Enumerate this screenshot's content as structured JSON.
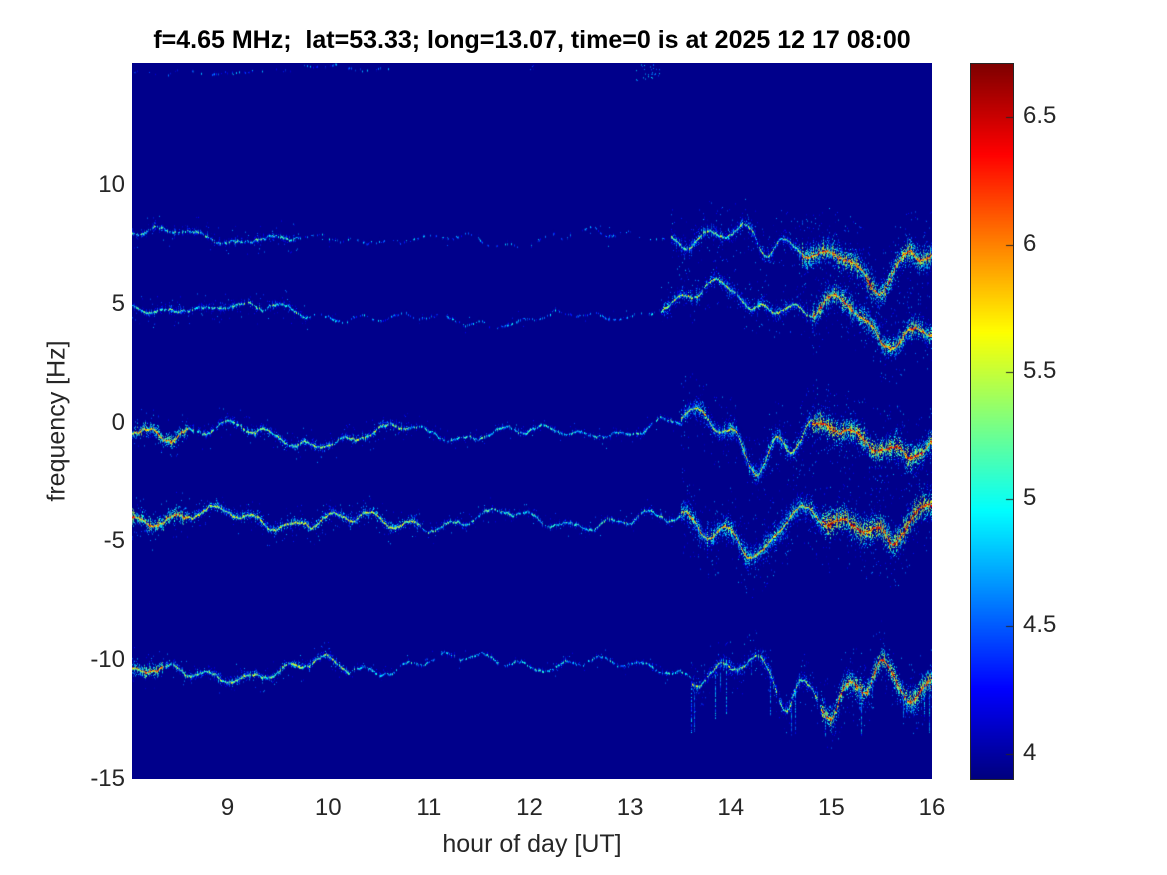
{
  "seed": 1337,
  "colors": {
    "page_background": "#ffffff",
    "plot_background": "#00008b",
    "tick_text": "#262626",
    "title_text": "#000000",
    "colorbar_border": "#262626"
  },
  "chart_data": {
    "type": "heatmap",
    "title": "f=4.65 MHz;  lat=53.33; long=13.07, time=0 is at 2025 12 17 08:00",
    "xlabel": "hour of day [UT]",
    "ylabel": "frequency [Hz]",
    "xlim": [
      8.05,
      16
    ],
    "ylim": [
      -15,
      15.13
    ],
    "clim": [
      3.9,
      6.71
    ],
    "colormap": "jet",
    "grid": false,
    "legend": "none",
    "x_ticks": [
      9,
      10,
      11,
      12,
      13,
      14,
      15,
      16
    ],
    "y_ticks": [
      10,
      5,
      0,
      -5,
      -10,
      -15
    ],
    "colorbar_ticks": [
      "6.5",
      "6",
      "5.5",
      "5",
      "4.5",
      "4"
    ],
    "colorbar_tick_values": [
      6.5,
      6,
      5.5,
      5,
      4.5,
      4
    ],
    "description": "Doppler frequency spectrogram: five horizontal multipath Doppler traces on a dark-blue (low power) background; traces are faint cyan/green dashes mid-day and intensify to broad red cores after ~14 UT with downward V-shaped excursions near 14.2-15.8 UT.",
    "traces": [
      {
        "name": "trace-plus-8Hz",
        "center_hz": 7.9,
        "phases": [
          0.5,
          2.1,
          4.0
        ],
        "dips": [
          {
            "h": 15.45,
            "depth": 1.9,
            "width": 0.22
          },
          {
            "h": 14.35,
            "depth": 0.7,
            "width": 0.1
          }
        ],
        "regions": [
          {
            "h0": 8.05,
            "h1": 9.7,
            "density": 0.8,
            "intensity": 5.0,
            "spread": 0.3,
            "amp": 0.3
          },
          {
            "h0": 9.7,
            "h1": 13.4,
            "density": 0.35,
            "intensity": 4.55,
            "spread": 0.18,
            "amp": 0.28
          },
          {
            "h0": 13.4,
            "h1": 14.7,
            "density": 0.95,
            "intensity": 5.3,
            "spread": 0.55,
            "amp": 0.5
          },
          {
            "h0": 14.7,
            "h1": 16,
            "density": 1,
            "intensity": 6.15,
            "spread": 0.85,
            "amp": 0.55
          }
        ]
      },
      {
        "name": "trace-plus-4.7Hz",
        "center_hz": 4.65,
        "phases": [
          1.7,
          0.3,
          2.6
        ],
        "dips": [
          {
            "h": 15.5,
            "depth": 1.5,
            "width": 0.25
          },
          {
            "h": 14.2,
            "depth": 0.8,
            "width": 0.1
          }
        ],
        "regions": [
          {
            "h0": 8.05,
            "h1": 9.8,
            "density": 0.85,
            "intensity": 5.05,
            "spread": 0.3,
            "amp": 0.35
          },
          {
            "h0": 9.8,
            "h1": 13.3,
            "density": 0.5,
            "intensity": 4.6,
            "spread": 0.18,
            "amp": 0.3
          },
          {
            "h0": 13.3,
            "h1": 14.8,
            "density": 0.95,
            "intensity": 5.35,
            "spread": 0.5,
            "amp": 0.5
          },
          {
            "h0": 14.8,
            "h1": 16,
            "density": 1,
            "intensity": 6.05,
            "spread": 0.75,
            "amp": 0.5
          }
        ]
      },
      {
        "name": "trace-0Hz",
        "center_hz": -0.45,
        "phases": [
          3.1,
          1.1,
          5.2
        ],
        "dips": [
          {
            "h": 14.25,
            "depth": 1.2,
            "width": 0.15
          },
          {
            "h": 14.6,
            "depth": 0.7,
            "width": 0.1
          }
        ],
        "regions": [
          {
            "h0": 8.05,
            "h1": 8.6,
            "density": 1,
            "intensity": 5.85,
            "spread": 0.4,
            "amp": 0.4
          },
          {
            "h0": 8.6,
            "h1": 10.8,
            "density": 0.95,
            "intensity": 5.25,
            "spread": 0.3,
            "amp": 0.45
          },
          {
            "h0": 10.8,
            "h1": 13.5,
            "density": 0.85,
            "intensity": 4.9,
            "spread": 0.22,
            "amp": 0.38
          },
          {
            "h0": 13.5,
            "h1": 14.8,
            "density": 1,
            "intensity": 5.6,
            "spread": 0.7,
            "amp": 0.6
          },
          {
            "h0": 14.8,
            "h1": 16,
            "density": 1,
            "intensity": 6.3,
            "spread": 0.8,
            "amp": 0.45
          }
        ]
      },
      {
        "name": "trace-minus-4Hz",
        "center_hz": -3.9,
        "phases": [
          4.4,
          2.8,
          0.9
        ],
        "dips": [
          {
            "h": 14.3,
            "depth": 1.4,
            "width": 0.18
          },
          {
            "h": 15.6,
            "depth": 0.7,
            "width": 0.1
          }
        ],
        "regions": [
          {
            "h0": 8.05,
            "h1": 8.6,
            "density": 1,
            "intensity": 6.0,
            "spread": 0.45,
            "amp": 0.5
          },
          {
            "h0": 8.6,
            "h1": 10.9,
            "density": 1,
            "intensity": 5.45,
            "spread": 0.35,
            "amp": 0.5
          },
          {
            "h0": 10.9,
            "h1": 13.5,
            "density": 0.9,
            "intensity": 5.0,
            "spread": 0.25,
            "amp": 0.45
          },
          {
            "h0": 13.5,
            "h1": 14.9,
            "density": 1,
            "intensity": 5.8,
            "spread": 0.8,
            "amp": 0.65
          },
          {
            "h0": 14.9,
            "h1": 16,
            "density": 1,
            "intensity": 6.4,
            "spread": 0.9,
            "amp": 0.5
          }
        ]
      },
      {
        "name": "trace-minus-10Hz",
        "center_hz": -10.35,
        "phases": [
          0.2,
          3.7,
          1.9
        ],
        "dips": [
          {
            "h": 14.55,
            "depth": 1.5,
            "width": 0.1
          },
          {
            "h": 15.0,
            "depth": 1.7,
            "width": 0.12
          },
          {
            "h": 15.35,
            "depth": 1.1,
            "width": 0.1
          },
          {
            "h": 15.8,
            "depth": 1.9,
            "width": 0.15
          }
        ],
        "regions": [
          {
            "h0": 8.05,
            "h1": 8.35,
            "density": 1,
            "intensity": 5.9,
            "spread": 0.4,
            "amp": 0.4
          },
          {
            "h0": 8.35,
            "h1": 10.2,
            "density": 0.95,
            "intensity": 5.3,
            "spread": 0.3,
            "amp": 0.45
          },
          {
            "h0": 10.2,
            "h1": 13.6,
            "density": 0.7,
            "intensity": 4.8,
            "spread": 0.2,
            "amp": 0.45
          },
          {
            "h0": 13.6,
            "h1": 14.9,
            "density": 0.95,
            "intensity": 5.3,
            "spread": 0.5,
            "amp": 0.6,
            "spikes": 0.05
          },
          {
            "h0": 14.9,
            "h1": 16,
            "density": 1,
            "intensity": 6.2,
            "spread": 0.75,
            "amp": 0.55,
            "spikes": 0.06
          }
        ]
      },
      {
        "name": "top-edge-speckle",
        "center_hz": 14.8,
        "phases": [
          0,
          0,
          0
        ],
        "dips": [],
        "regions": [
          {
            "h0": 8.05,
            "h1": 10.6,
            "density": 0.25,
            "intensity": 4.45,
            "spread": 0.12,
            "amp": 0.15
          }
        ]
      }
    ],
    "artifacts": [
      {
        "h": 13.17,
        "hz": 14.65,
        "spread_h": 0.12,
        "spread_hz": 0.45,
        "count": 30,
        "intensity": 4.9
      },
      {
        "h": 12.02,
        "hz": 14.95,
        "spread_h": 0.03,
        "spread_hz": 0.1,
        "count": 4,
        "intensity": 4.5
      }
    ]
  }
}
